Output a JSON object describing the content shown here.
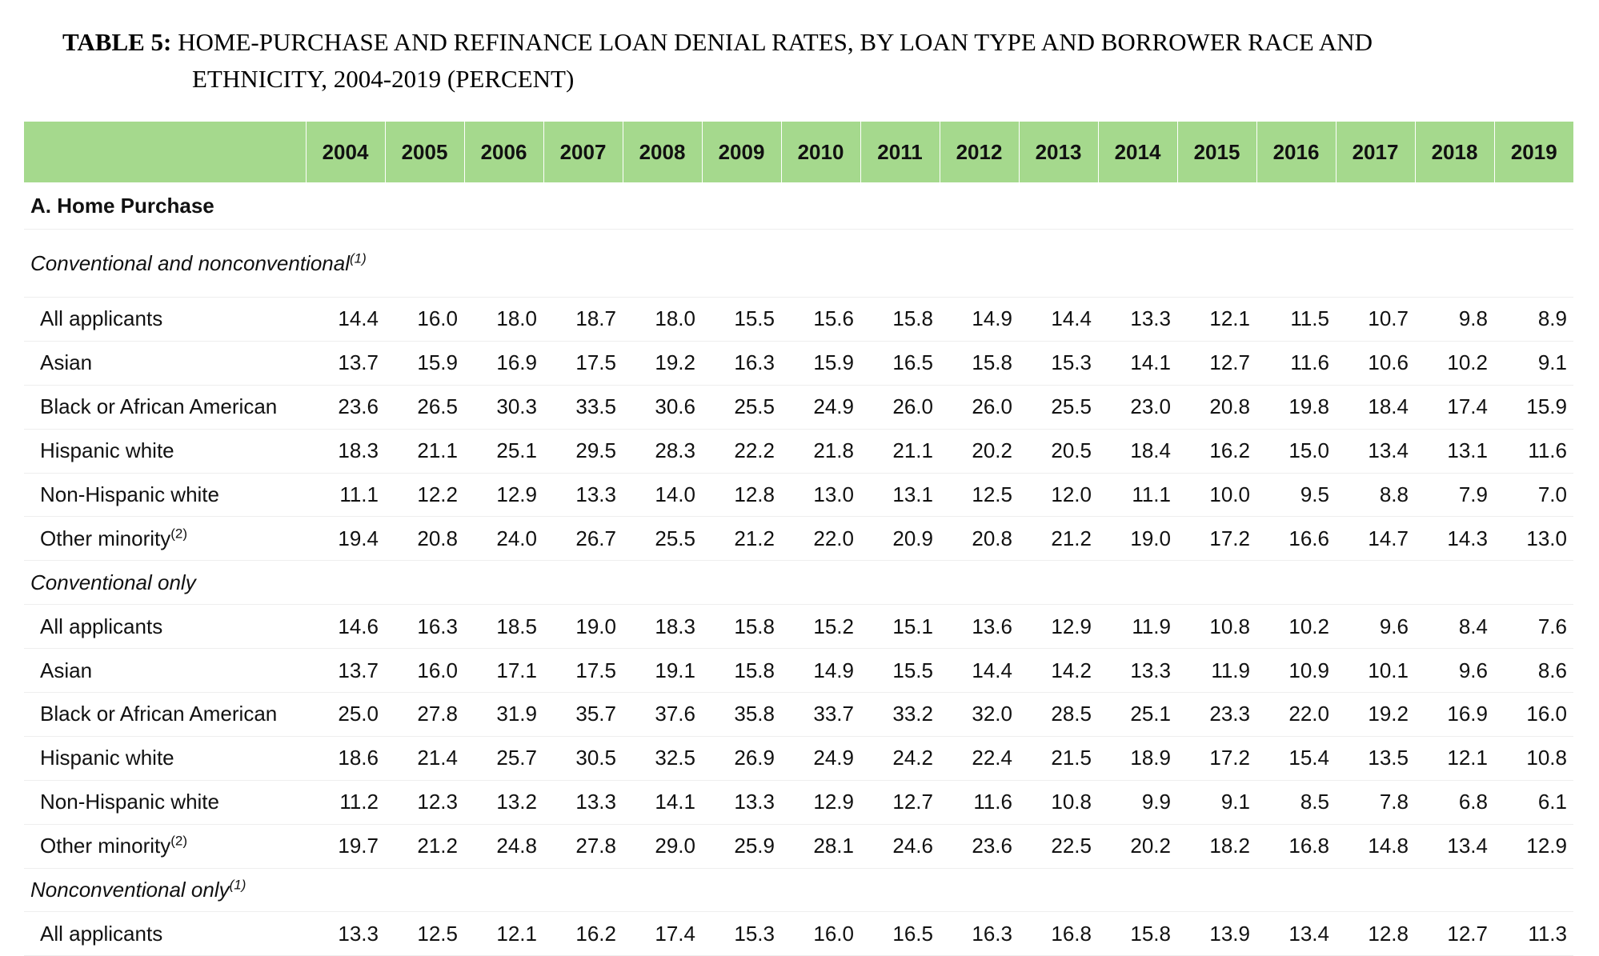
{
  "title": {
    "label": "TABLE 5:",
    "line1": "HOME-PURCHASE AND REFINANCE LOAN DENIAL RATES, BY LOAN TYPE AND BORROWER RACE AND",
    "line2": "ETHNICITY, 2004-2019 (PERCENT)"
  },
  "years": [
    "2004",
    "2005",
    "2006",
    "2007",
    "2008",
    "2009",
    "2010",
    "2011",
    "2012",
    "2013",
    "2014",
    "2015",
    "2016",
    "2017",
    "2018",
    "2019"
  ],
  "section": "A. Home Purchase",
  "groups": [
    {
      "title": "Conventional and nonconventional",
      "note": "(1)",
      "rows": [
        {
          "label": "All applicants",
          "note": "",
          "values": [
            "14.4",
            "16.0",
            "18.0",
            "18.7",
            "18.0",
            "15.5",
            "15.6",
            "15.8",
            "14.9",
            "14.4",
            "13.3",
            "12.1",
            "11.5",
            "10.7",
            "9.8",
            "8.9"
          ]
        },
        {
          "label": "Asian",
          "note": "",
          "values": [
            "13.7",
            "15.9",
            "16.9",
            "17.5",
            "19.2",
            "16.3",
            "15.9",
            "16.5",
            "15.8",
            "15.3",
            "14.1",
            "12.7",
            "11.6",
            "10.6",
            "10.2",
            "9.1"
          ]
        },
        {
          "label": "Black or African American",
          "note": "",
          "values": [
            "23.6",
            "26.5",
            "30.3",
            "33.5",
            "30.6",
            "25.5",
            "24.9",
            "26.0",
            "26.0",
            "25.5",
            "23.0",
            "20.8",
            "19.8",
            "18.4",
            "17.4",
            "15.9"
          ]
        },
        {
          "label": "Hispanic white",
          "note": "",
          "values": [
            "18.3",
            "21.1",
            "25.1",
            "29.5",
            "28.3",
            "22.2",
            "21.8",
            "21.1",
            "20.2",
            "20.5",
            "18.4",
            "16.2",
            "15.0",
            "13.4",
            "13.1",
            "11.6"
          ]
        },
        {
          "label": "Non-Hispanic white",
          "note": "",
          "values": [
            "11.1",
            "12.2",
            "12.9",
            "13.3",
            "14.0",
            "12.8",
            "13.0",
            "13.1",
            "12.5",
            "12.0",
            "11.1",
            "10.0",
            "9.5",
            "8.8",
            "7.9",
            "7.0"
          ]
        },
        {
          "label": "Other minority",
          "note": "(2)",
          "values": [
            "19.4",
            "20.8",
            "24.0",
            "26.7",
            "25.5",
            "21.2",
            "22.0",
            "20.9",
            "20.8",
            "21.2",
            "19.0",
            "17.2",
            "16.6",
            "14.7",
            "14.3",
            "13.0"
          ]
        }
      ]
    },
    {
      "title": "Conventional only",
      "note": "",
      "rows": [
        {
          "label": "All applicants",
          "note": "",
          "values": [
            "14.6",
            "16.3",
            "18.5",
            "19.0",
            "18.3",
            "15.8",
            "15.2",
            "15.1",
            "13.6",
            "12.9",
            "11.9",
            "10.8",
            "10.2",
            "9.6",
            "8.4",
            "7.6"
          ]
        },
        {
          "label": "Asian",
          "note": "",
          "values": [
            "13.7",
            "16.0",
            "17.1",
            "17.5",
            "19.1",
            "15.8",
            "14.9",
            "15.5",
            "14.4",
            "14.2",
            "13.3",
            "11.9",
            "10.9",
            "10.1",
            "9.6",
            "8.6"
          ]
        },
        {
          "label": "Black or African American",
          "note": "",
          "values": [
            "25.0",
            "27.8",
            "31.9",
            "35.7",
            "37.6",
            "35.8",
            "33.7",
            "33.2",
            "32.0",
            "28.5",
            "25.1",
            "23.3",
            "22.0",
            "19.2",
            "16.9",
            "16.0"
          ]
        },
        {
          "label": "Hispanic white",
          "note": "",
          "values": [
            "18.6",
            "21.4",
            "25.7",
            "30.5",
            "32.5",
            "26.9",
            "24.9",
            "24.2",
            "22.4",
            "21.5",
            "18.9",
            "17.2",
            "15.4",
            "13.5",
            "12.1",
            "10.8"
          ]
        },
        {
          "label": "Non-Hispanic white",
          "note": "",
          "values": [
            "11.2",
            "12.3",
            "13.2",
            "13.3",
            "14.1",
            "13.3",
            "12.9",
            "12.7",
            "11.6",
            "10.8",
            "9.9",
            "9.1",
            "8.5",
            "7.8",
            "6.8",
            "6.1"
          ]
        },
        {
          "label": "Other minority",
          "note": "(2)",
          "values": [
            "19.7",
            "21.2",
            "24.8",
            "27.8",
            "29.0",
            "25.9",
            "28.1",
            "24.6",
            "23.6",
            "22.5",
            "20.2",
            "18.2",
            "16.8",
            "14.8",
            "13.4",
            "12.9"
          ]
        }
      ]
    },
    {
      "title": "Nonconventional only",
      "note": "(1)",
      "rows": [
        {
          "label": "All applicants",
          "note": "",
          "values": [
            "13.3",
            "12.5",
            "12.1",
            "16.2",
            "17.4",
            "15.3",
            "16.0",
            "16.5",
            "16.3",
            "16.8",
            "15.8",
            "13.9",
            "13.4",
            "12.8",
            "12.7",
            "11.3"
          ]
        }
      ]
    }
  ],
  "colors": {
    "header_bg": "#a5d98d",
    "row_rule": "#eeeeee"
  }
}
